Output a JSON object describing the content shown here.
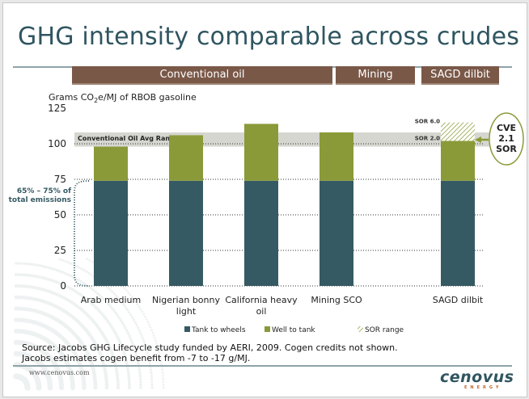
{
  "slide": {
    "title": "GHG intensity comparable across crudes",
    "category_headers": [
      "Conventional oil",
      "Mining",
      "SAGD dilbit"
    ],
    "source_line1": "Source: Jacobs GHG Lifecycle study funded by AERI, 2009. Cogen credits not shown.",
    "source_line2": "Jacobs estimates cogen benefit from -7 to -17 g/MJ.",
    "footer_url": "www.cenovus.com",
    "logo_text": "cenovus",
    "logo_subtext": "ENERGY"
  },
  "chart_data": {
    "type": "bar",
    "stacked": true,
    "title": "",
    "ylabel_prefix": "Grams CO",
    "ylabel_sub": "2",
    "ylabel_suffix": "e/MJ of RBOB gasoline",
    "xlabel": "",
    "ylim": [
      0,
      125
    ],
    "yticks": [
      0,
      25,
      50,
      75,
      100,
      125
    ],
    "grid": true,
    "categories": [
      [
        "Arab medium"
      ],
      [
        "Nigerian bonny",
        "light"
      ],
      [
        "California heavy",
        "oil"
      ],
      [
        "Mining SCO"
      ],
      [
        "SAGD dilbit"
      ]
    ],
    "series": [
      {
        "name": "Tank to wheels",
        "color": "#365a63",
        "values": [
          74,
          74,
          74,
          74,
          74
        ]
      },
      {
        "name": "Well to tank",
        "color": "#8a9a38",
        "values": [
          24,
          32,
          40,
          34,
          28
        ]
      },
      {
        "name": "SOR range",
        "color": "#c8cf9a",
        "pattern": "hatch",
        "values": [
          0,
          0,
          0,
          0,
          13
        ]
      }
    ],
    "legend_position": "bottom",
    "annotations": {
      "band_label": "Conventional Oil Avg Range",
      "band_range": [
        98,
        108
      ],
      "sor_high_label": "SOR 6.0",
      "sor_low_label": "SOR 2.0",
      "callout_lines": [
        "CVE",
        "2.1",
        "SOR"
      ],
      "bracket_lines": [
        "65% – 75% of",
        "total emissions"
      ]
    }
  }
}
